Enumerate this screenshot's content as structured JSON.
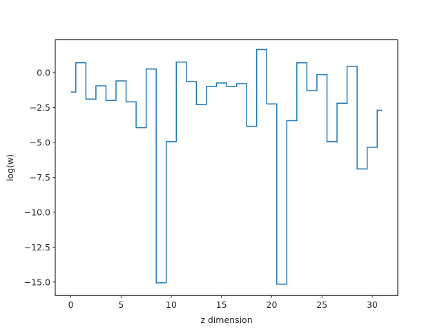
{
  "chart_data": {
    "type": "line",
    "drawstyle": "steps-mid",
    "title": "",
    "xlabel": "z dimension",
    "ylabel": "log(w)",
    "xlim": [
      -1.55,
      32.55
    ],
    "ylim": [
      -15.96,
      2.34
    ],
    "xticks": [
      0,
      5,
      10,
      15,
      20,
      25,
      30
    ],
    "xtick_labels": [
      "0",
      "5",
      "10",
      "15",
      "20",
      "25",
      "30"
    ],
    "yticks": [
      0.0,
      -2.5,
      -5.0,
      -7.5,
      -10.0,
      -12.5,
      -15.0
    ],
    "ytick_labels": [
      "0.0",
      "−2.5",
      "−5.0",
      "−7.5",
      "−10.0",
      "−12.5",
      "−15.0"
    ],
    "grid": false,
    "line_color": "#1f77b4",
    "series": [
      {
        "x": [
          0,
          1,
          2,
          3,
          4,
          5,
          6,
          7,
          8,
          9,
          10,
          11,
          12,
          13,
          14,
          15,
          16,
          17,
          18,
          19,
          20,
          21,
          22,
          23,
          24,
          25,
          26,
          27,
          28,
          29,
          30,
          31
        ],
        "values": [
          -1.4,
          0.7,
          -1.9,
          -0.95,
          -2.0,
          -0.6,
          -2.1,
          -3.95,
          0.25,
          -15.05,
          -4.95,
          0.75,
          -0.65,
          -2.3,
          -1.0,
          -0.75,
          -1.0,
          -0.8,
          -3.85,
          1.65,
          -2.25,
          -15.15,
          -3.45,
          0.7,
          -1.3,
          -0.15,
          -4.95,
          -2.2,
          0.45,
          -6.9,
          -5.35,
          -2.7
        ]
      }
    ]
  }
}
